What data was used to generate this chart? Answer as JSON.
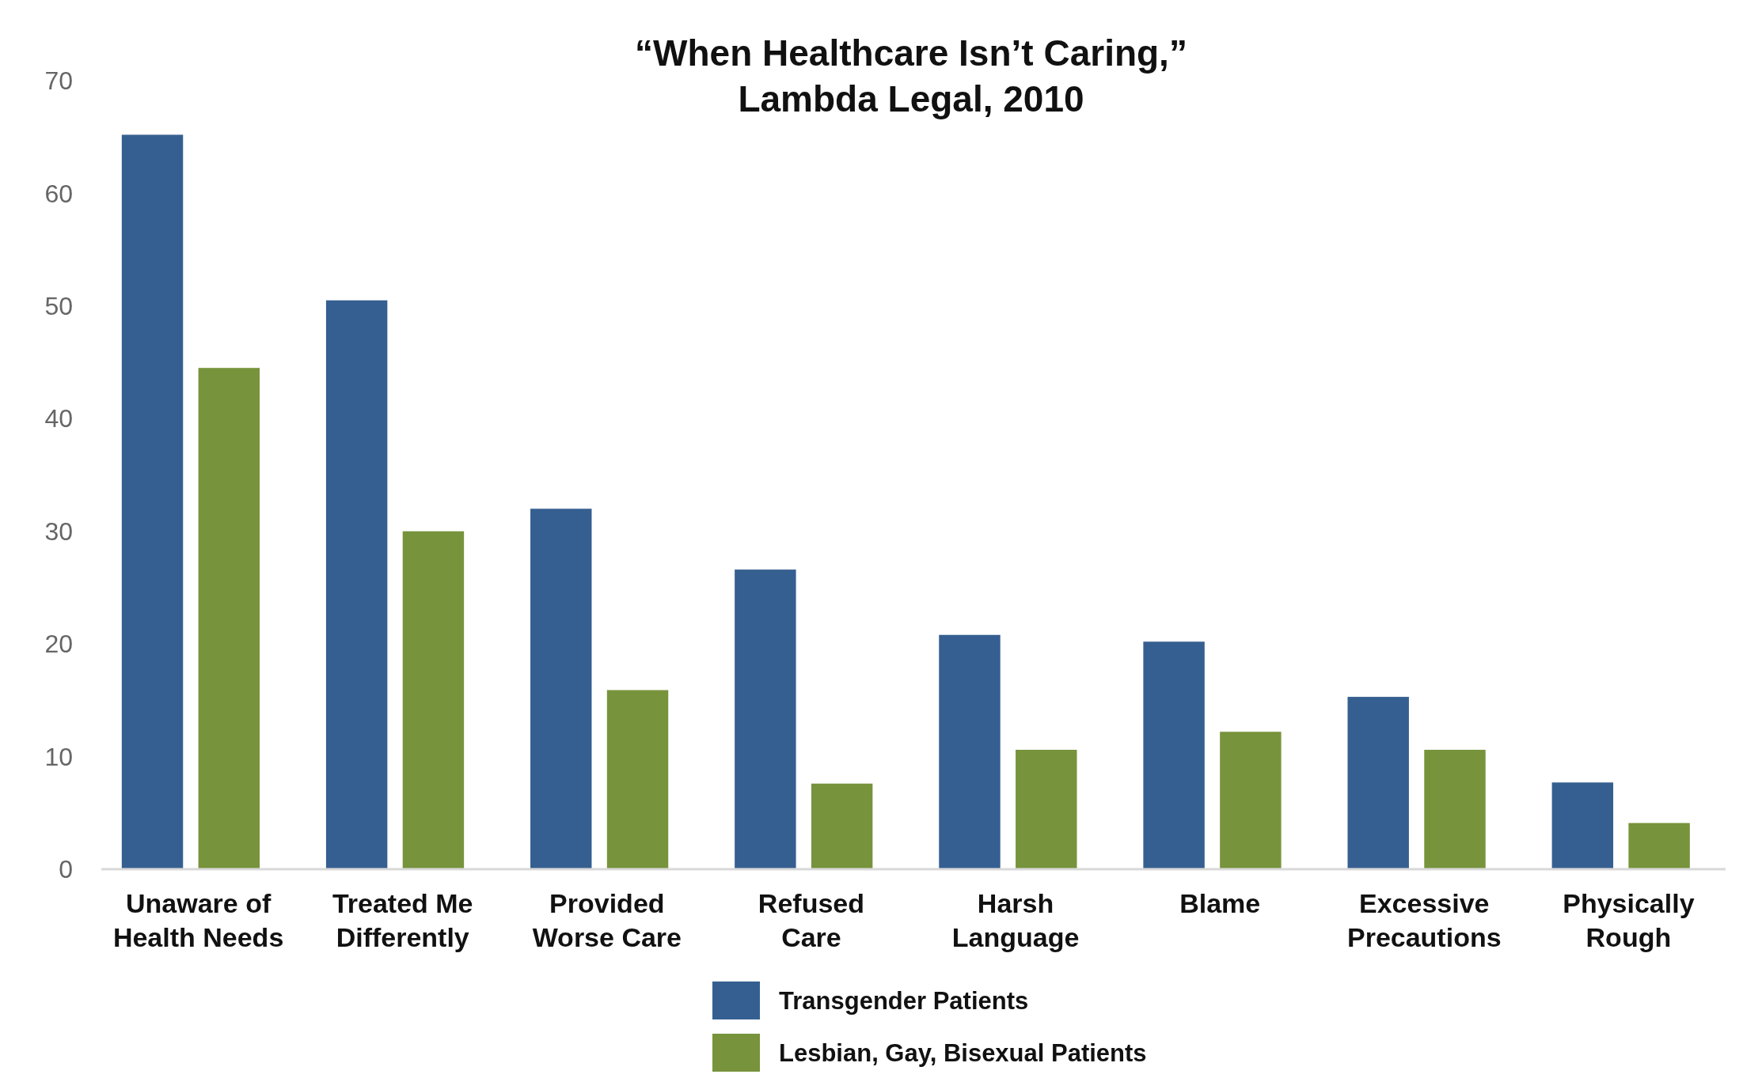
{
  "chart_data": {
    "type": "bar",
    "title": "“When Healthcare Isn’t Caring,”\nLambda Legal, 2010",
    "categories": [
      "Unaware of\nHealth Needs",
      "Treated Me\nDifferently",
      "Provided\nWorse Care",
      "Refused\nCare",
      "Harsh\nLanguage",
      "Blame",
      "Excessive\nPrecautions",
      "Physically\nRough"
    ],
    "series": [
      {
        "name": "Transgender Patients",
        "color": "#365f91",
        "values": [
          65.2,
          50.5,
          32,
          26.6,
          20.8,
          20.2,
          15.3,
          7.7
        ]
      },
      {
        "name": "Lesbian, Gay, Bisexual Patients",
        "color": "#77933c",
        "values": [
          44.5,
          30,
          15.9,
          7.6,
          10.6,
          12.2,
          10.6,
          4.1
        ]
      }
    ],
    "ylim": [
      0,
      70
    ],
    "yticks": [
      0,
      10,
      20,
      30,
      40,
      50,
      60,
      70
    ],
    "grid": false,
    "legend": "bottom"
  }
}
